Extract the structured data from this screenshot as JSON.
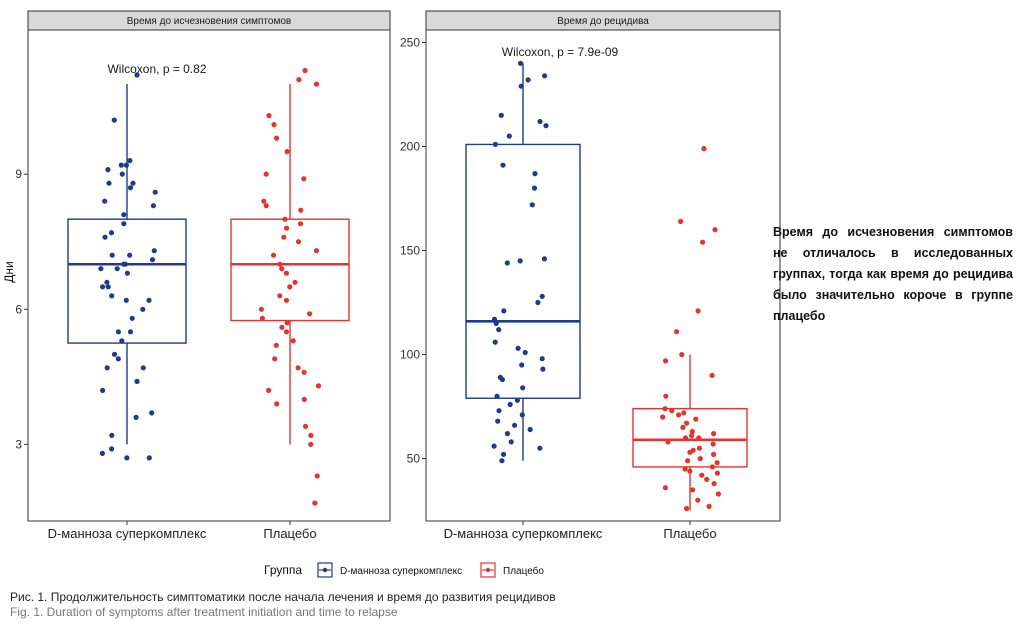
{
  "chart_data": [
    {
      "type": "box",
      "panel_title": "Время до исчезновения симптомов",
      "ylabel": "Дни",
      "ylim": [
        1.3,
        12.2
      ],
      "yticks": [
        3,
        6,
        9
      ],
      "categories": [
        "D-манноза суперкомплекс",
        "Плацебо"
      ],
      "annotation": "Wilcoxon, p = 0.82",
      "boxes": [
        {
          "group": "D-манноза суперкомплекс",
          "whisker_low": 3.0,
          "q1": 5.25,
          "median": 7.0,
          "q3": 8.0,
          "whisker_high": 11.0
        },
        {
          "group": "Плацебо",
          "whisker_low": 3.0,
          "q1": 5.75,
          "median": 7.0,
          "q3": 8.0,
          "whisker_high": 11.0
        }
      ],
      "points": [
        [
          9.2,
          8.7,
          8.4,
          7.2,
          7.0,
          6.8,
          6.5,
          6.2,
          5.8,
          5.3,
          5.0,
          4.7,
          3.6,
          2.8,
          2.7,
          2.9,
          4.4,
          4.7,
          5.5,
          6.2,
          6.5,
          6.9,
          7.1,
          7.3,
          7.6,
          7.9,
          8.3,
          8.8,
          9.0,
          9.3,
          11.2,
          10.2,
          9.1,
          8.6,
          8.1,
          7.7,
          7.2,
          6.9,
          6.6,
          6.0,
          5.5,
          4.9,
          4.2,
          3.7,
          3.2,
          2.7,
          7.0,
          6.3,
          8.8,
          9.2
        ],
        [
          11.3,
          11.1,
          10.3,
          10.1,
          9.5,
          9.0,
          8.4,
          8.0,
          7.9,
          7.5,
          7.3,
          7.0,
          6.8,
          6.5,
          6.2,
          5.9,
          5.7,
          5.5,
          5.2,
          4.9,
          4.6,
          4.2,
          3.9,
          3.4,
          3.0,
          2.3,
          1.7,
          3.2,
          4.0,
          4.7,
          5.3,
          5.8,
          6.3,
          6.9,
          7.2,
          7.6,
          8.2,
          8.9,
          9.8,
          11.0,
          6.0,
          5.6,
          6.6,
          7.8,
          8.3,
          4.3
        ]
      ]
    },
    {
      "type": "box",
      "panel_title": "Время до рецидива",
      "ylabel": "",
      "ylim": [
        20,
        256
      ],
      "yticks": [
        50,
        100,
        150,
        200,
        250
      ],
      "categories": [
        "D-манноза суперкомплекс",
        "Плацебо"
      ],
      "annotation": "Wilcoxon, p = 7.9e-09",
      "boxes": [
        {
          "group": "D-манноза суперкомплекс",
          "whisker_low": 49,
          "q1": 79,
          "median": 116,
          "q3": 201,
          "whisker_high": 240
        },
        {
          "group": "Плацебо",
          "whisker_low": 25,
          "q1": 46,
          "median": 59,
          "q3": 74,
          "whisker_high": 100
        }
      ],
      "points": [
        [
          240,
          234,
          232,
          229,
          215,
          212,
          210,
          205,
          201,
          191,
          187,
          180,
          172,
          146,
          144,
          128,
          121,
          115,
          112,
          106,
          101,
          98,
          93,
          88,
          84,
          80,
          76,
          71,
          68,
          66,
          62,
          58,
          55,
          49,
          52,
          56,
          64,
          73,
          78,
          89,
          95,
          103,
          117,
          125,
          145
        ],
        [
          199,
          164,
          160,
          154,
          121,
          111,
          100,
          97,
          90,
          80,
          74,
          73,
          71,
          70,
          69,
          67,
          65,
          63,
          62,
          61,
          60,
          58,
          57,
          55,
          53,
          52,
          50,
          49,
          48,
          46,
          45,
          44,
          42,
          40,
          38,
          35,
          33,
          30,
          27,
          26,
          36,
          43,
          54,
          60,
          72
        ]
      ]
    }
  ],
  "legend": {
    "title": "Группа",
    "items": [
      {
        "label": "D-манноза суперкомплекс",
        "color": "#1f3c8c"
      },
      {
        "label": "Плацебо",
        "color": "#e3342f"
      }
    ]
  },
  "colors": {
    "group1": "#1f3c8c",
    "group2": "#e3342f",
    "strip": "#d9d9d9"
  },
  "side_note": "Время до исчезновения симптомов не отличалось в исследованных группах, тогда как время до рецидива было значительно короче в группе плацебо",
  "caption": {
    "ru": "Рис. 1. Продолжительность симптоматики после начала лечения и время до развития рецидивов",
    "en": "Fig. 1. Duration of symptoms after treatment initiation and time to relapse"
  }
}
